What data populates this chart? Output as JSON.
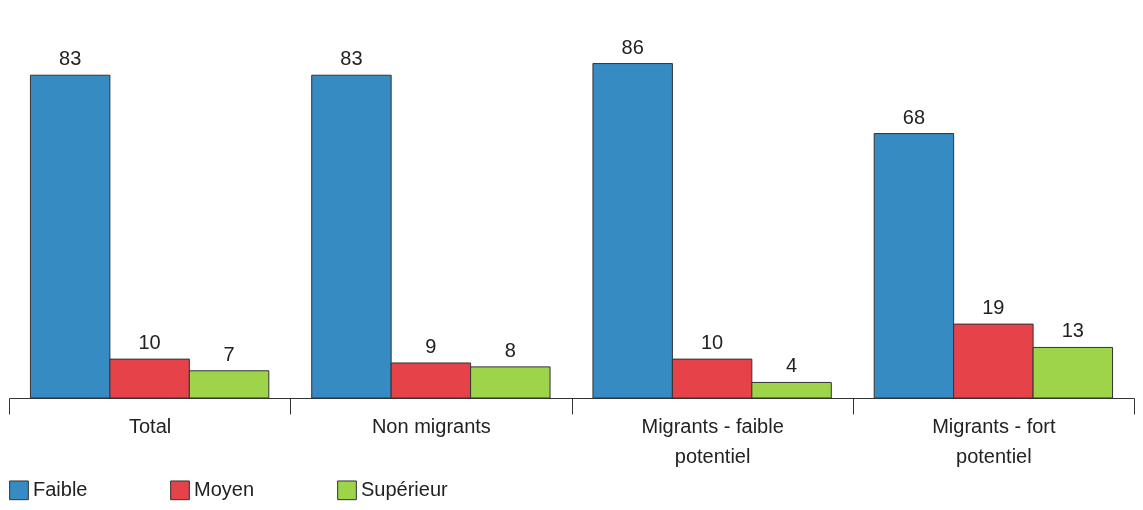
{
  "chart_data": {
    "type": "bar",
    "categories": [
      "Total",
      "Non migrants",
      "Migrants - faible potentiel",
      "Migrants - fort potentiel"
    ],
    "series": [
      {
        "name": "Faible",
        "color": "#358bc2",
        "values": [
          83,
          83,
          86,
          68
        ]
      },
      {
        "name": "Moyen",
        "color": "#e5424a",
        "values": [
          10,
          9,
          10,
          19
        ]
      },
      {
        "name": "Supérieur",
        "color": "#9dd44a",
        "values": [
          7,
          8,
          4,
          13
        ]
      }
    ],
    "data_labels": true,
    "legend": "bottom",
    "grid": false
  }
}
